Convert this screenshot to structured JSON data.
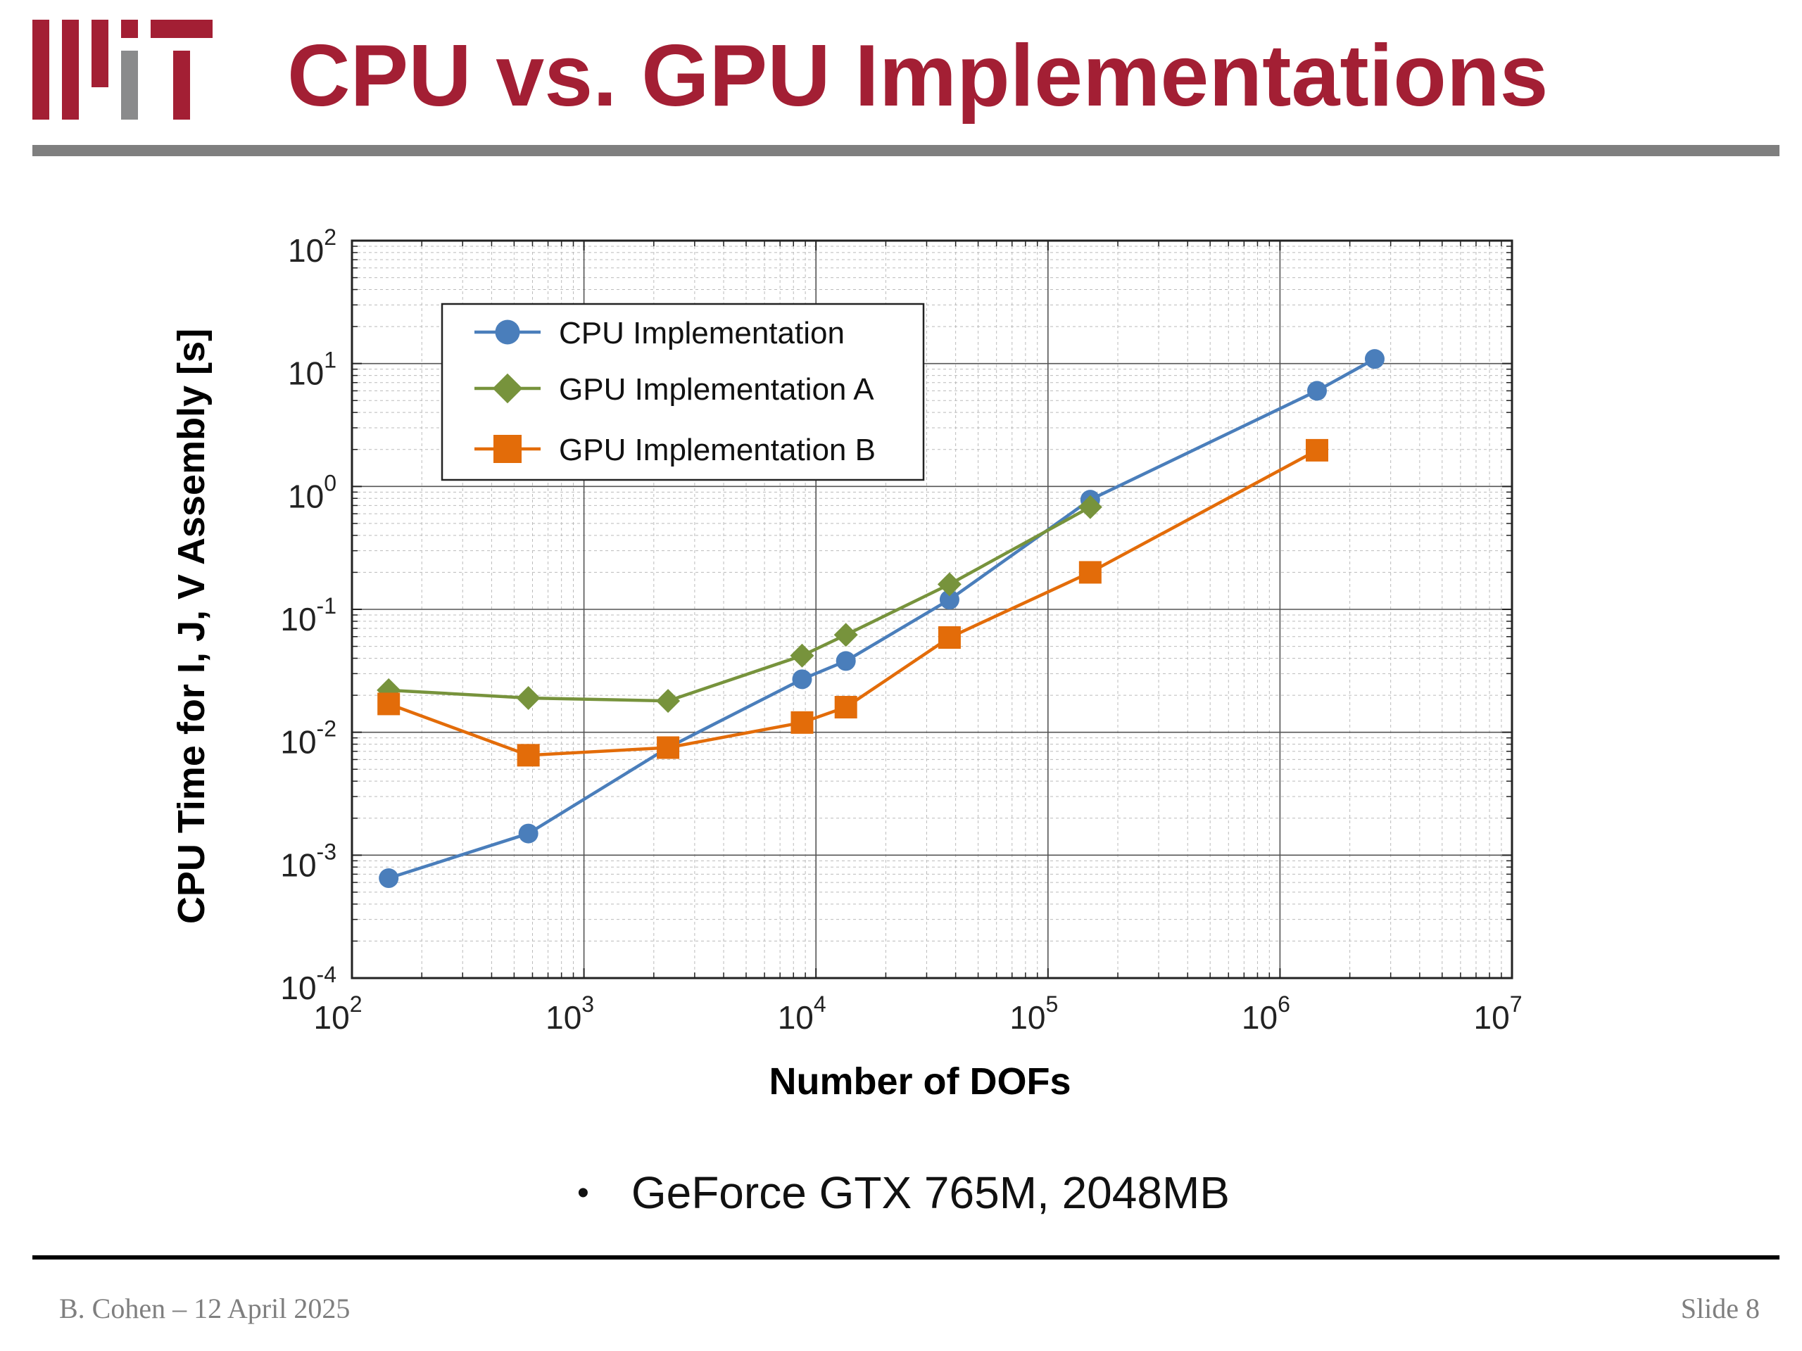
{
  "slide": {
    "title": "CPU vs. GPU Implementations",
    "bullet": "GeForce GTX 765M, 2048MB",
    "footer_left": "B. Cohen – 12 April 2025",
    "footer_right": "Slide 8",
    "colors": {
      "title": "#a31f34",
      "logo_main": "#a31f34",
      "logo_accent": "#8a8b8c",
      "rule": "#7f7f7f"
    },
    "logo_icon": "mit-logo"
  },
  "chart_data": {
    "type": "line",
    "title": "",
    "xlabel": "Number of DOFs",
    "ylabel": "CPU Time for I, J, V Assembly [s]",
    "xscale": "log",
    "yscale": "log",
    "xlim": [
      100,
      10000000
    ],
    "ylim": [
      0.0001,
      100
    ],
    "grid": true,
    "minor_grid": true,
    "legend_position": "top-left",
    "x_ticks": [
      {
        "base": "10",
        "exp": "2"
      },
      {
        "base": "10",
        "exp": "3"
      },
      {
        "base": "10",
        "exp": "4"
      },
      {
        "base": "10",
        "exp": "5"
      },
      {
        "base": "10",
        "exp": "6"
      },
      {
        "base": "10",
        "exp": "7"
      }
    ],
    "y_ticks": [
      {
        "base": "10",
        "exp": "-4"
      },
      {
        "base": "10",
        "exp": "-3"
      },
      {
        "base": "10",
        "exp": "-2"
      },
      {
        "base": "10",
        "exp": "-1"
      },
      {
        "base": "10",
        "exp": "0"
      },
      {
        "base": "10",
        "exp": "1"
      },
      {
        "base": "10",
        "exp": "2"
      }
    ],
    "series": [
      {
        "name": "CPU Implementation",
        "color": "#4a7ebb",
        "marker": "circle",
        "x": [
          144,
          576,
          2304,
          8712,
          13456,
          37636,
          152100,
          1444000,
          2560000
        ],
        "y": [
          0.00065,
          0.0015,
          0.0075,
          0.027,
          0.038,
          0.12,
          0.78,
          6.0,
          10.9
        ]
      },
      {
        "name": "GPU Implementation A",
        "color": "#77933c",
        "marker": "diamond",
        "x": [
          144,
          576,
          2304,
          8712,
          13456,
          37636,
          152100
        ],
        "y": [
          0.022,
          0.019,
          0.018,
          0.042,
          0.062,
          0.16,
          0.68
        ]
      },
      {
        "name": "GPU Implementation B",
        "color": "#e36c09",
        "marker": "square",
        "x": [
          144,
          576,
          2304,
          8712,
          13456,
          37636,
          152100,
          1444000
        ],
        "y": [
          0.017,
          0.0065,
          0.0075,
          0.012,
          0.016,
          0.059,
          0.2,
          1.97
        ]
      }
    ]
  }
}
